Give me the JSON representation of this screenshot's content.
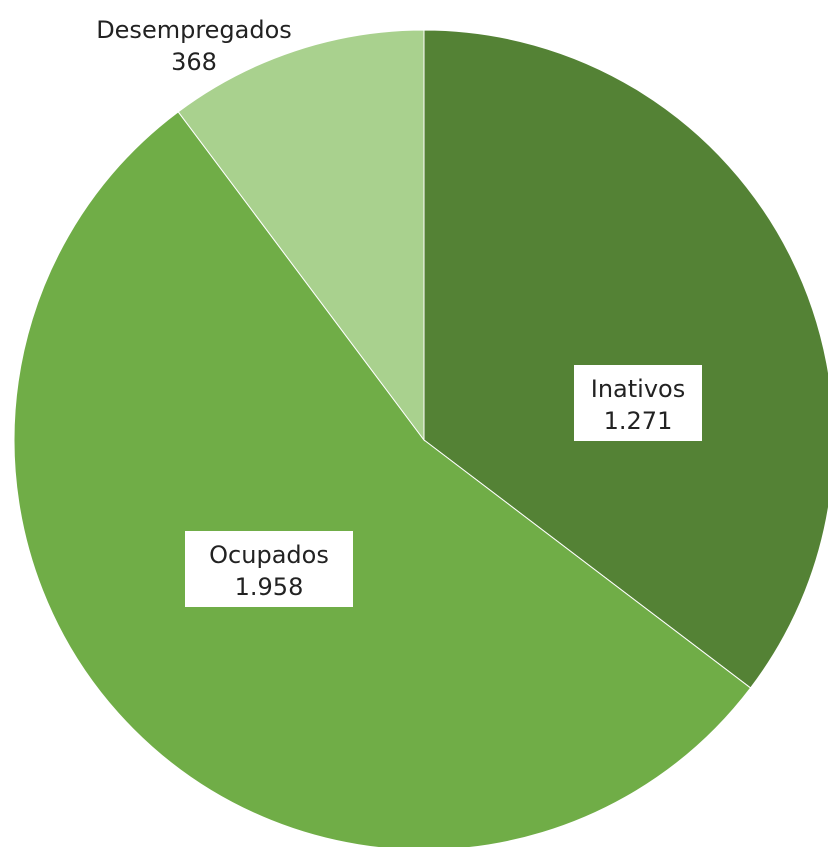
{
  "chart_data": {
    "type": "pie",
    "slices": [
      {
        "label": "Inativos",
        "value_label": "1.271",
        "value": 1271,
        "color": "#548235",
        "label_style": "boxed"
      },
      {
        "label": "Ocupados",
        "value_label": "1.958",
        "value": 1958,
        "color": "#70AD47",
        "label_style": "boxed"
      },
      {
        "label": "Desempregados",
        "value_label": "368",
        "value": 368,
        "color": "#A9D18E",
        "label_style": "outside"
      }
    ],
    "start_angle_deg": 0,
    "direction": "clockwise",
    "legend": "none"
  }
}
